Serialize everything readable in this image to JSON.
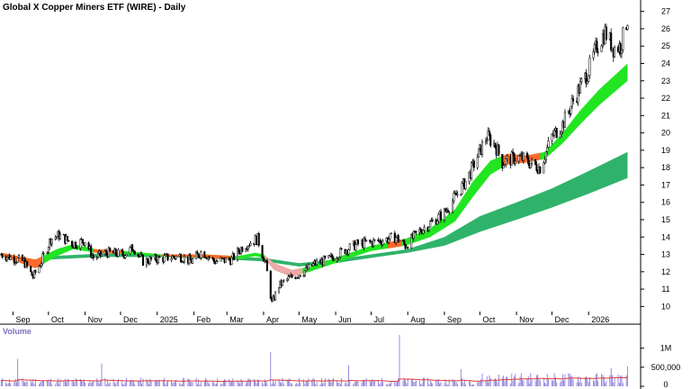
{
  "chart_data": {
    "type": "candlestick",
    "title": "Global X Copper Miners ETF (WIRE) - Daily",
    "price_axis": {
      "range": [
        9.5,
        27.5
      ],
      "ticks": [
        "10",
        "11",
        "12",
        "13",
        "14",
        "15",
        "16",
        "17",
        "18",
        "19",
        "20",
        "21",
        "22",
        "23",
        "24",
        "25",
        "26",
        "27"
      ],
      "position": "right",
      "grid": false
    },
    "x_axis": {
      "range": [
        "2024-08-21",
        "2026-02-14"
      ],
      "ticks": [
        {
          "label": "Sep",
          "date": "2024-09-01"
        },
        {
          "label": "Oct",
          "date": "2024-10-01"
        },
        {
          "label": "Nov",
          "date": "2024-11-01"
        },
        {
          "label": "Dec",
          "date": "2024-12-01"
        },
        {
          "label": "2025",
          "date": "2025-01-01"
        },
        {
          "label": "Feb",
          "date": "2025-02-01"
        },
        {
          "label": "Mar",
          "date": "2025-03-01"
        },
        {
          "label": "Apr",
          "date": "2025-04-01"
        },
        {
          "label": "May",
          "date": "2025-05-01"
        },
        {
          "label": "Jun",
          "date": "2025-06-01"
        },
        {
          "label": "Jul",
          "date": "2025-07-01"
        },
        {
          "label": "Aug",
          "date": "2025-08-01"
        },
        {
          "label": "Sep",
          "date": "2025-09-01"
        },
        {
          "label": "Oct",
          "date": "2025-10-01"
        },
        {
          "label": "Nov",
          "date": "2025-11-01"
        },
        {
          "label": "Dec",
          "date": "2025-12-01"
        },
        {
          "label": "2026",
          "date": "2026-01-01"
        }
      ]
    },
    "price_path": [
      [
        "2024-08-22",
        13.0
      ],
      [
        "2024-09-10",
        12.6
      ],
      [
        "2024-09-18",
        11.7
      ],
      [
        "2024-09-25",
        12.6
      ],
      [
        "2024-10-03",
        13.9
      ],
      [
        "2024-10-10",
        14.1
      ],
      [
        "2024-10-22",
        13.6
      ],
      [
        "2024-11-01",
        13.8
      ],
      [
        "2024-11-08",
        12.8
      ],
      [
        "2024-11-20",
        13.1
      ],
      [
        "2024-12-03",
        13.0
      ],
      [
        "2024-12-12",
        13.4
      ],
      [
        "2024-12-20",
        12.6
      ],
      [
        "2025-01-08",
        12.8
      ],
      [
        "2025-01-20",
        12.9
      ],
      [
        "2025-01-30",
        12.6
      ],
      [
        "2025-02-08",
        13.2
      ],
      [
        "2025-02-18",
        12.6
      ],
      [
        "2025-03-05",
        12.7
      ],
      [
        "2025-03-15",
        13.5
      ],
      [
        "2025-03-27",
        13.9
      ],
      [
        "2025-04-03",
        12.4
      ],
      [
        "2025-04-08",
        10.2
      ],
      [
        "2025-04-14",
        11.2
      ],
      [
        "2025-04-22",
        11.6
      ],
      [
        "2025-05-05",
        12.0
      ],
      [
        "2025-05-15",
        12.5
      ],
      [
        "2025-05-26",
        12.7
      ],
      [
        "2025-06-10",
        13.3
      ],
      [
        "2025-06-20",
        13.6
      ],
      [
        "2025-07-01",
        13.7
      ],
      [
        "2025-07-10",
        13.8
      ],
      [
        "2025-07-22",
        14.0
      ],
      [
        "2025-07-30",
        13.5
      ],
      [
        "2025-08-10",
        14.3
      ],
      [
        "2025-08-20",
        14.8
      ],
      [
        "2025-09-01",
        15.4
      ],
      [
        "2025-09-10",
        16.3
      ],
      [
        "2025-09-20",
        17.3
      ],
      [
        "2025-09-30",
        18.8
      ],
      [
        "2025-10-07",
        19.8
      ],
      [
        "2025-10-14",
        19.3
      ],
      [
        "2025-10-20",
        18.3
      ],
      [
        "2025-11-01",
        18.6
      ],
      [
        "2025-11-07",
        18.5
      ],
      [
        "2025-11-14",
        18.2
      ],
      [
        "2025-11-21",
        18.0
      ],
      [
        "2025-12-01",
        19.8
      ],
      [
        "2025-12-10",
        20.5
      ],
      [
        "2025-12-20",
        22.0
      ],
      [
        "2026-01-01",
        23.6
      ],
      [
        "2026-01-08",
        25.0
      ],
      [
        "2026-01-15",
        25.8
      ],
      [
        "2026-01-22",
        24.9
      ],
      [
        "2026-01-28",
        25.0
      ],
      [
        "2026-02-03",
        26.6
      ]
    ],
    "overlays": [
      {
        "band": "short-term",
        "top": [
          [
            "2024-08-22",
            13.1
          ],
          [
            "2024-09-20",
            12.7
          ],
          [
            "2024-10-08",
            13.3
          ],
          [
            "2024-10-22",
            13.6
          ],
          [
            "2024-11-10",
            13.3
          ],
          [
            "2024-12-05",
            13.2
          ],
          [
            "2025-01-05",
            13.0
          ],
          [
            "2025-02-10",
            13.0
          ],
          [
            "2025-03-10",
            12.9
          ],
          [
            "2025-03-25",
            13.1
          ],
          [
            "2025-04-01",
            13.0
          ],
          [
            "2025-04-10",
            12.5
          ],
          [
            "2025-04-25",
            12.1
          ],
          [
            "2025-05-10",
            12.3
          ],
          [
            "2025-06-05",
            12.9
          ],
          [
            "2025-07-01",
            13.5
          ],
          [
            "2025-07-30",
            13.9
          ],
          [
            "2025-08-20",
            14.5
          ],
          [
            "2025-09-10",
            15.6
          ],
          [
            "2025-09-25",
            17.2
          ],
          [
            "2025-10-10",
            18.4
          ],
          [
            "2025-10-25",
            18.8
          ],
          [
            "2025-11-10",
            18.7
          ],
          [
            "2025-11-25",
            18.9
          ],
          [
            "2025-12-10",
            20.0
          ],
          [
            "2025-12-25",
            21.3
          ],
          [
            "2026-01-10",
            22.5
          ],
          [
            "2026-02-03",
            24.0
          ]
        ],
        "bottom": [
          [
            "2024-08-22",
            12.9
          ],
          [
            "2024-09-20",
            12.2
          ],
          [
            "2024-10-08",
            12.9
          ],
          [
            "2024-10-22",
            13.3
          ],
          [
            "2024-11-10",
            13.1
          ],
          [
            "2024-12-05",
            13.0
          ],
          [
            "2025-01-05",
            12.9
          ],
          [
            "2025-02-10",
            12.8
          ],
          [
            "2025-03-10",
            12.7
          ],
          [
            "2025-03-25",
            12.9
          ],
          [
            "2025-04-01",
            12.8
          ],
          [
            "2025-04-10",
            12.1
          ],
          [
            "2025-04-25",
            11.7
          ],
          [
            "2025-05-10",
            12.0
          ],
          [
            "2025-06-05",
            12.6
          ],
          [
            "2025-07-01",
            13.2
          ],
          [
            "2025-07-30",
            13.5
          ],
          [
            "2025-08-20",
            14.0
          ],
          [
            "2025-09-10",
            14.9
          ],
          [
            "2025-09-25",
            16.3
          ],
          [
            "2025-10-10",
            17.6
          ],
          [
            "2025-10-25",
            18.2
          ],
          [
            "2025-11-10",
            18.3
          ],
          [
            "2025-11-25",
            18.5
          ],
          [
            "2025-12-10",
            19.4
          ],
          [
            "2025-12-25",
            20.5
          ],
          [
            "2026-01-10",
            21.6
          ],
          [
            "2026-02-03",
            23.0
          ]
        ],
        "fill": "#22e522",
        "fill_down": "#ff6a2a",
        "fill_weak": "#f0a8a8"
      },
      {
        "band": "long-term",
        "top": [
          [
            "2024-10-01",
            12.9
          ],
          [
            "2024-11-15",
            13.05
          ],
          [
            "2025-01-01",
            13.0
          ],
          [
            "2025-02-15",
            12.9
          ],
          [
            "2025-04-01",
            12.8
          ],
          [
            "2025-05-01",
            12.5
          ],
          [
            "2025-06-01",
            12.7
          ],
          [
            "2025-07-01",
            13.0
          ],
          [
            "2025-08-01",
            13.3
          ],
          [
            "2025-09-01",
            14.0
          ],
          [
            "2025-10-01",
            15.2
          ],
          [
            "2025-11-01",
            16.0
          ],
          [
            "2025-12-01",
            16.8
          ],
          [
            "2026-01-01",
            17.8
          ],
          [
            "2026-02-03",
            18.9
          ]
        ],
        "bottom": [
          [
            "2024-10-01",
            12.7
          ],
          [
            "2024-11-15",
            12.85
          ],
          [
            "2025-01-01",
            12.85
          ],
          [
            "2025-02-15",
            12.75
          ],
          [
            "2025-04-01",
            12.6
          ],
          [
            "2025-05-01",
            12.3
          ],
          [
            "2025-06-01",
            12.5
          ],
          [
            "2025-07-01",
            12.8
          ],
          [
            "2025-08-01",
            13.1
          ],
          [
            "2025-09-01",
            13.5
          ],
          [
            "2025-10-01",
            14.3
          ],
          [
            "2025-11-01",
            15.0
          ],
          [
            "2025-12-01",
            15.7
          ],
          [
            "2026-01-01",
            16.5
          ],
          [
            "2026-02-03",
            17.4
          ]
        ],
        "fill": "#2fb36a"
      }
    ],
    "volume": {
      "label": "Volume",
      "ticks": [
        "1M",
        "500,000",
        "0"
      ],
      "tick_values": [
        1000000,
        500000,
        0
      ],
      "range": [
        0,
        1300000
      ],
      "base_level": 150000,
      "spikes": [
        {
          "date": "2024-09-05",
          "value": 720000
        },
        {
          "date": "2024-11-15",
          "value": 600000
        },
        {
          "date": "2025-04-07",
          "value": 900000
        },
        {
          "date": "2025-06-12",
          "value": 550000
        },
        {
          "date": "2025-07-25",
          "value": 1350000
        },
        {
          "date": "2025-09-15",
          "value": 450000
        },
        {
          "date": "2026-01-20",
          "value": 480000
        },
        {
          "date": "2026-02-03",
          "value": 520000
        }
      ],
      "bar_color": "#7b6fd6",
      "avg_color": "#e03a3a"
    }
  }
}
